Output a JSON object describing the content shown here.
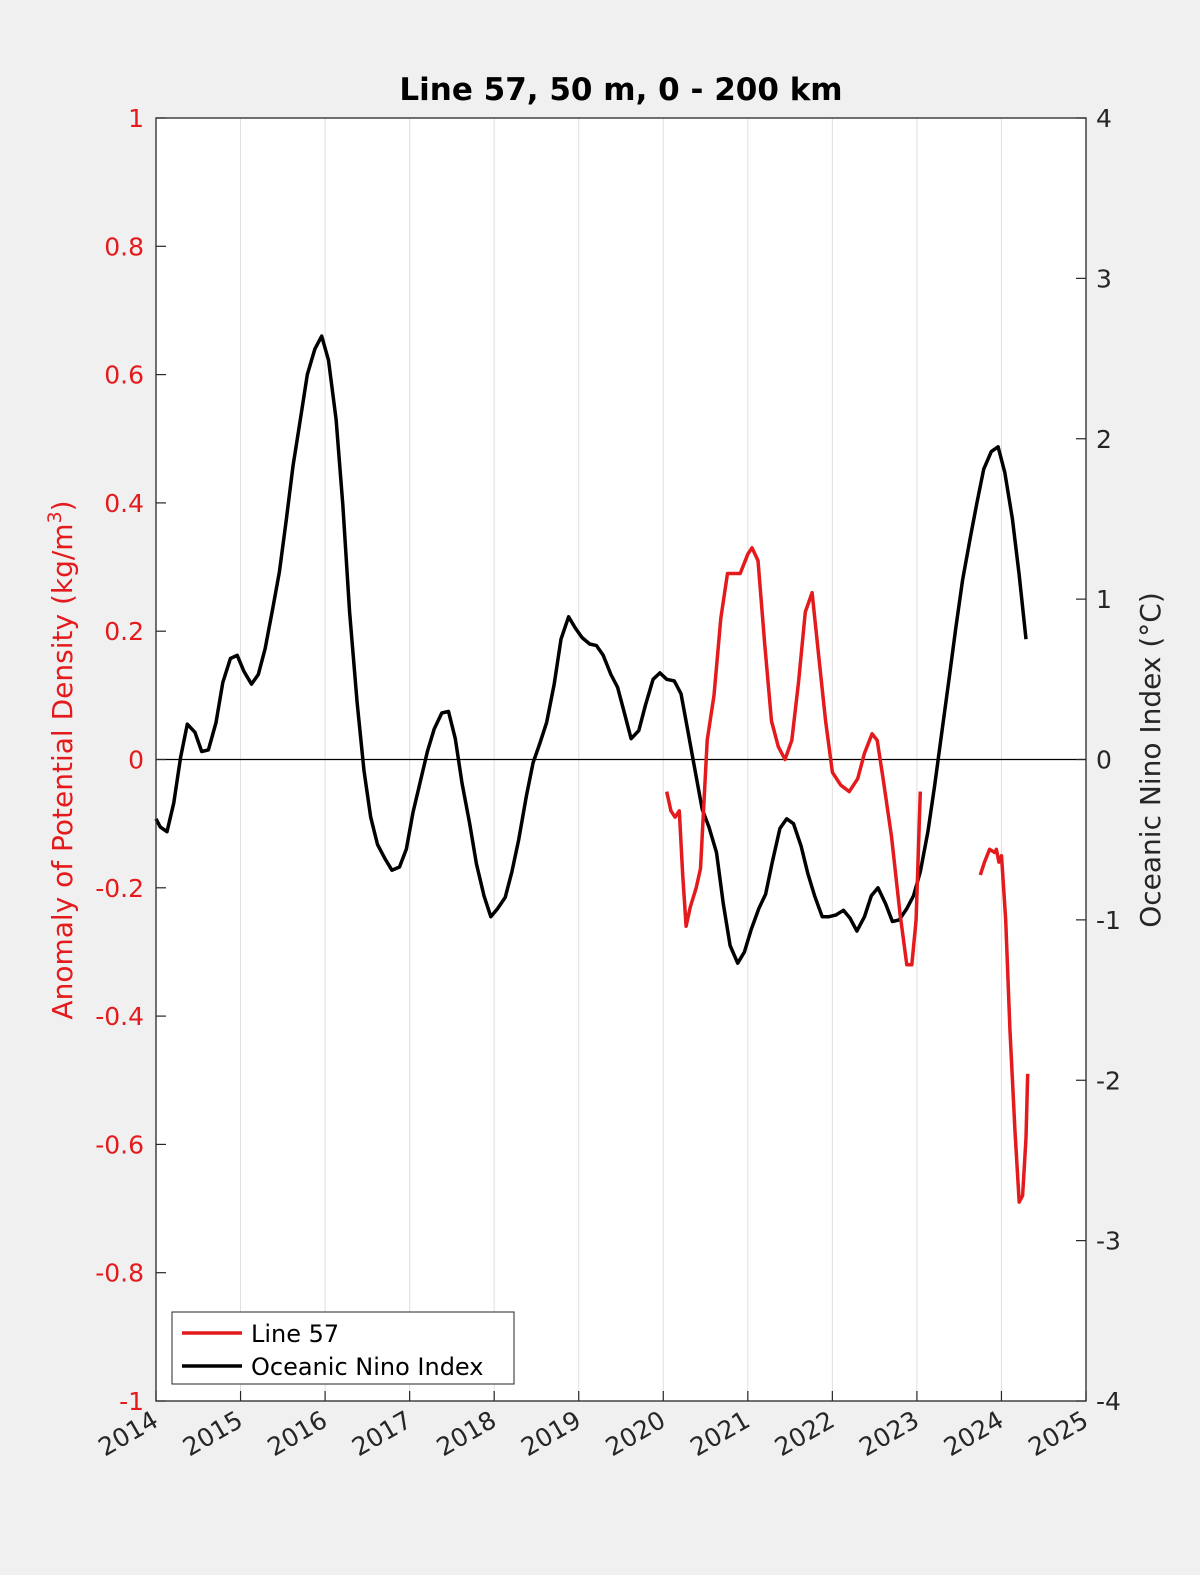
{
  "chart_data": {
    "type": "line",
    "title": "Line 57, 50 m, 0 - 200 km",
    "ylabel_left": "Anomaly of Potential Density (kg/m³)",
    "ylabel_left_text": "Anomaly of Potential Density (kg/m",
    "ylabel_left_sup": "3",
    "ylabel_left_close": ")",
    "ylabel_right": "Oceanic Nino Index (°C)",
    "xlim": [
      2014,
      2025
    ],
    "ylim_left": [
      -1,
      1
    ],
    "ylim_right": [
      -4,
      4
    ],
    "x_ticks": [
      "2014",
      "2015",
      "2016",
      "2017",
      "2018",
      "2019",
      "2020",
      "2021",
      "2022",
      "2023",
      "2024",
      "2025"
    ],
    "y_left_ticks": [
      "1",
      "0.8",
      "0.6",
      "0.4",
      "0.2",
      "0",
      "-0.2",
      "-0.4",
      "-0.6",
      "-0.8",
      "-1"
    ],
    "y_right_ticks": [
      "4",
      "3",
      "2",
      "1",
      "0",
      "-1",
      "-2",
      "-3",
      "-4"
    ],
    "grid": "vertical",
    "legend_position": "bottom-left",
    "colors": {
      "line57": "#e41a1c",
      "oni": "#000000",
      "left_axis": "#e41a1c",
      "background": "#f0f0f0"
    },
    "series": [
      {
        "name": "Line 57",
        "axis": "left",
        "color": "#e41a1c",
        "segments": [
          [
            [
              2020.04,
              -0.05
            ],
            [
              2020.09,
              -0.08
            ],
            [
              2020.14,
              -0.09
            ],
            [
              2020.19,
              -0.08
            ],
            [
              2020.23,
              -0.18
            ],
            [
              2020.27,
              -0.26
            ],
            [
              2020.32,
              -0.23
            ],
            [
              2020.39,
              -0.2
            ],
            [
              2020.44,
              -0.17
            ],
            [
              2020.52,
              0.03
            ],
            [
              2020.6,
              0.1
            ],
            [
              2020.68,
              0.22
            ],
            [
              2020.76,
              0.29
            ],
            [
              2020.83,
              0.29
            ],
            [
              2020.91,
              0.29
            ],
            [
              2021.0,
              0.32
            ],
            [
              2021.05,
              0.33
            ],
            [
              2021.12,
              0.31
            ],
            [
              2021.2,
              0.18
            ],
            [
              2021.28,
              0.06
            ],
            [
              2021.36,
              0.02
            ],
            [
              2021.44,
              0.0
            ],
            [
              2021.52,
              0.03
            ],
            [
              2021.6,
              0.12
            ],
            [
              2021.68,
              0.23
            ],
            [
              2021.76,
              0.26
            ],
            [
              2021.84,
              0.16
            ],
            [
              2021.92,
              0.06
            ],
            [
              2022.0,
              -0.02
            ],
            [
              2022.1,
              -0.04
            ],
            [
              2022.2,
              -0.05
            ],
            [
              2022.3,
              -0.03
            ],
            [
              2022.38,
              0.01
            ],
            [
              2022.47,
              0.04
            ],
            [
              2022.53,
              0.03
            ],
            [
              2022.6,
              -0.03
            ],
            [
              2022.7,
              -0.12
            ],
            [
              2022.8,
              -0.24
            ],
            [
              2022.88,
              -0.32
            ],
            [
              2022.94,
              -0.32
            ],
            [
              2022.99,
              -0.25
            ],
            [
              2023.04,
              -0.05
            ]
          ],
          [
            [
              2023.75,
              -0.18
            ],
            [
              2023.8,
              -0.16
            ],
            [
              2023.86,
              -0.14
            ],
            [
              2023.92,
              -0.145
            ],
            [
              2023.94,
              -0.14
            ],
            [
              2023.97,
              -0.16
            ],
            [
              2024.0,
              -0.15
            ],
            [
              2024.05,
              -0.25
            ],
            [
              2024.1,
              -0.42
            ],
            [
              2024.16,
              -0.58
            ],
            [
              2024.21,
              -0.69
            ],
            [
              2024.25,
              -0.68
            ],
            [
              2024.29,
              -0.59
            ],
            [
              2024.31,
              -0.49
            ]
          ]
        ]
      },
      {
        "name": "Oceanic Nino Index",
        "axis": "right",
        "color": "#000000",
        "points": [
          [
            2014.0,
            -0.37
          ],
          [
            2014.05,
            -0.42
          ],
          [
            2014.13,
            -0.45
          ],
          [
            2014.21,
            -0.27
          ],
          [
            2014.29,
            0.01
          ],
          [
            2014.37,
            0.22
          ],
          [
            2014.46,
            0.17
          ],
          [
            2014.54,
            0.05
          ],
          [
            2014.62,
            0.06
          ],
          [
            2014.71,
            0.23
          ],
          [
            2014.79,
            0.48
          ],
          [
            2014.88,
            0.63
          ],
          [
            2014.96,
            0.65
          ],
          [
            2015.04,
            0.55
          ],
          [
            2015.13,
            0.47
          ],
          [
            2015.21,
            0.53
          ],
          [
            2015.29,
            0.69
          ],
          [
            2015.38,
            0.94
          ],
          [
            2015.46,
            1.17
          ],
          [
            2015.54,
            1.49
          ],
          [
            2015.62,
            1.83
          ],
          [
            2015.71,
            2.13
          ],
          [
            2015.79,
            2.4
          ],
          [
            2015.88,
            2.56
          ],
          [
            2015.96,
            2.64
          ],
          [
            2016.04,
            2.49
          ],
          [
            2016.13,
            2.12
          ],
          [
            2016.21,
            1.59
          ],
          [
            2016.29,
            0.92
          ],
          [
            2016.38,
            0.35
          ],
          [
            2016.46,
            -0.07
          ],
          [
            2016.54,
            -0.36
          ],
          [
            2016.62,
            -0.53
          ],
          [
            2016.71,
            -0.62
          ],
          [
            2016.79,
            -0.69
          ],
          [
            2016.88,
            -0.67
          ],
          [
            2016.96,
            -0.56
          ],
          [
            2017.04,
            -0.33
          ],
          [
            2017.13,
            -0.13
          ],
          [
            2017.21,
            0.05
          ],
          [
            2017.29,
            0.19
          ],
          [
            2017.38,
            0.29
          ],
          [
            2017.46,
            0.3
          ],
          [
            2017.54,
            0.13
          ],
          [
            2017.62,
            -0.15
          ],
          [
            2017.71,
            -0.4
          ],
          [
            2017.79,
            -0.65
          ],
          [
            2017.88,
            -0.85
          ],
          [
            2017.96,
            -0.98
          ],
          [
            2018.04,
            -0.93
          ],
          [
            2018.13,
            -0.86
          ],
          [
            2018.21,
            -0.7
          ],
          [
            2018.29,
            -0.5
          ],
          [
            2018.38,
            -0.23
          ],
          [
            2018.46,
            -0.02
          ],
          [
            2018.54,
            0.1
          ],
          [
            2018.62,
            0.23
          ],
          [
            2018.71,
            0.47
          ],
          [
            2018.79,
            0.75
          ],
          [
            2018.88,
            0.89
          ],
          [
            2018.96,
            0.82
          ],
          [
            2019.04,
            0.76
          ],
          [
            2019.13,
            0.72
          ],
          [
            2019.21,
            0.71
          ],
          [
            2019.29,
            0.65
          ],
          [
            2019.38,
            0.53
          ],
          [
            2019.46,
            0.45
          ],
          [
            2019.54,
            0.29
          ],
          [
            2019.62,
            0.13
          ],
          [
            2019.71,
            0.18
          ],
          [
            2019.79,
            0.34
          ],
          [
            2019.88,
            0.5
          ],
          [
            2019.96,
            0.54
          ],
          [
            2020.04,
            0.5
          ],
          [
            2020.13,
            0.49
          ],
          [
            2020.21,
            0.41
          ],
          [
            2020.29,
            0.18
          ],
          [
            2020.38,
            -0.08
          ],
          [
            2020.46,
            -0.31
          ],
          [
            2020.54,
            -0.42
          ],
          [
            2020.63,
            -0.58
          ],
          [
            2020.71,
            -0.9
          ],
          [
            2020.79,
            -1.16
          ],
          [
            2020.88,
            -1.27
          ],
          [
            2020.96,
            -1.2
          ],
          [
            2021.04,
            -1.06
          ],
          [
            2021.13,
            -0.93
          ],
          [
            2021.21,
            -0.84
          ],
          [
            2021.29,
            -0.64
          ],
          [
            2021.38,
            -0.43
          ],
          [
            2021.46,
            -0.37
          ],
          [
            2021.54,
            -0.4
          ],
          [
            2021.63,
            -0.54
          ],
          [
            2021.71,
            -0.71
          ],
          [
            2021.79,
            -0.85
          ],
          [
            2021.88,
            -0.98
          ],
          [
            2021.96,
            -0.98
          ],
          [
            2022.04,
            -0.97
          ],
          [
            2022.13,
            -0.94
          ],
          [
            2022.21,
            -0.99
          ],
          [
            2022.29,
            -1.07
          ],
          [
            2022.38,
            -0.98
          ],
          [
            2022.46,
            -0.85
          ],
          [
            2022.54,
            -0.8
          ],
          [
            2022.63,
            -0.9
          ],
          [
            2022.71,
            -1.01
          ],
          [
            2022.79,
            -1.0
          ],
          [
            2022.88,
            -0.93
          ],
          [
            2022.96,
            -0.85
          ],
          [
            2023.04,
            -0.7
          ],
          [
            2023.13,
            -0.45
          ],
          [
            2023.21,
            -0.16
          ],
          [
            2023.29,
            0.15
          ],
          [
            2023.38,
            0.5
          ],
          [
            2023.46,
            0.82
          ],
          [
            2023.54,
            1.12
          ],
          [
            2023.63,
            1.38
          ],
          [
            2023.71,
            1.6
          ],
          [
            2023.79,
            1.81
          ],
          [
            2023.88,
            1.92
          ],
          [
            2023.96,
            1.95
          ],
          [
            2024.04,
            1.79
          ],
          [
            2024.13,
            1.5
          ],
          [
            2024.21,
            1.15
          ],
          [
            2024.29,
            0.75
          ]
        ]
      }
    ]
  }
}
